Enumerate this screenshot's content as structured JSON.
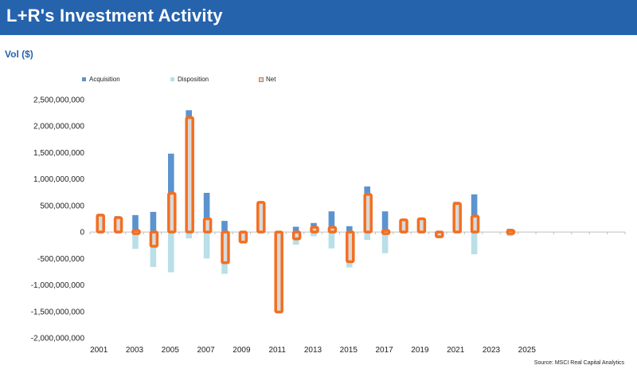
{
  "header": {
    "title": "L+R's Investment Activity"
  },
  "y_axis_title": "Vol ($)",
  "source": "Source: MSCI Real Capital Analytics",
  "colors": {
    "header_bg": "#2563ad",
    "acquisition": "#5b93d0",
    "disposition": "#b9dfe8",
    "net_outline": "#f36f21",
    "net_fill": "#d9d9d9"
  },
  "chart_data": {
    "type": "bar",
    "legend": [
      "Acquisition",
      "Disposition",
      "Net"
    ],
    "legend_position": "top-left",
    "years": [
      2001,
      2002,
      2003,
      2004,
      2005,
      2006,
      2007,
      2008,
      2009,
      2010,
      2011,
      2012,
      2013,
      2014,
      2015,
      2016,
      2017,
      2018,
      2019,
      2020,
      2021,
      2022,
      2023,
      2024,
      2025,
      2026,
      2027,
      2028,
      2029,
      2030
    ],
    "x_tick_labels": [
      "2001",
      "2003",
      "2005",
      "2007",
      "2009",
      "2011",
      "2013",
      "2015",
      "2017",
      "2019",
      "2021",
      "2023",
      "2025"
    ],
    "y_tick_labels": [
      "2,500,000,000",
      "2,000,000,000",
      "1,500,000,000",
      "1,000,000,000",
      "500,000,000",
      "0",
      "-500,000,000",
      "-1,000,000,000",
      "-1,500,000,000",
      "-2,000,000,000"
    ],
    "ylim": [
      -2000000000,
      2500000000
    ],
    "series": [
      {
        "name": "Acquisition",
        "values": [
          340000000,
          300000000,
          320000000,
          380000000,
          1480000000,
          2300000000,
          740000000,
          210000000,
          0,
          580000000,
          0,
          100000000,
          170000000,
          390000000,
          110000000,
          860000000,
          390000000,
          240000000,
          250000000,
          0,
          570000000,
          710000000,
          0,
          60000000,
          0,
          0,
          0,
          0,
          0,
          0
        ]
      },
      {
        "name": "Disposition",
        "values": [
          0,
          0,
          -320000000,
          -660000000,
          -760000000,
          -120000000,
          -500000000,
          -790000000,
          -190000000,
          0,
          -1500000000,
          -240000000,
          -80000000,
          -310000000,
          -670000000,
          -150000000,
          -400000000,
          0,
          0,
          -90000000,
          0,
          -420000000,
          0,
          -80000000,
          0,
          0,
          0,
          0,
          0,
          0
        ]
      },
      {
        "name": "Net",
        "values": [
          320000000,
          270000000,
          30000000,
          -270000000,
          730000000,
          2160000000,
          250000000,
          -580000000,
          -190000000,
          560000000,
          -1510000000,
          -130000000,
          90000000,
          90000000,
          -560000000,
          710000000,
          10000000,
          230000000,
          250000000,
          -90000000,
          540000000,
          300000000,
          0,
          -30000000,
          0,
          0,
          0,
          0,
          0,
          0
        ]
      }
    ]
  }
}
